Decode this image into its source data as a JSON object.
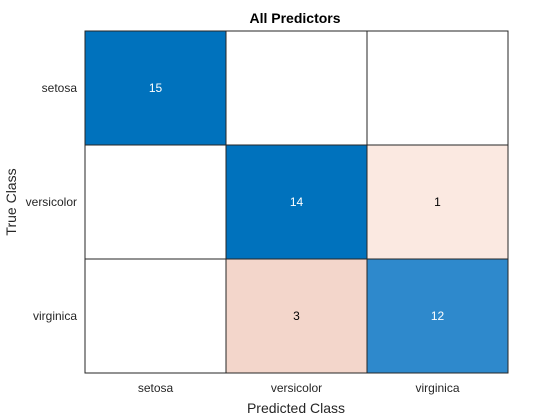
{
  "chart_data": {
    "type": "heatmap",
    "title": "All Predictors",
    "xlabel": "Predicted Class",
    "ylabel": "True Class",
    "x_categories": [
      "setosa",
      "versicolor",
      "virginica"
    ],
    "y_categories": [
      "setosa",
      "versicolor",
      "virginica"
    ],
    "values": [
      [
        15,
        0,
        0
      ],
      [
        0,
        14,
        1
      ],
      [
        0,
        3,
        12
      ]
    ],
    "colors": {
      "correct_strong": "#0072bd",
      "correct_medium": "#2e89cc",
      "error_light": "#fbe9e1",
      "error_medium": "#f3d6cb",
      "empty": "#ffffff",
      "grid": "#262626",
      "text_on_dark": "#ffffff",
      "text_on_light": "#000000"
    }
  }
}
